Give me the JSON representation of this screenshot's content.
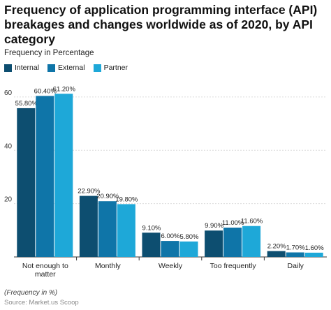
{
  "chart_data": {
    "type": "bar",
    "title": "Frequency of application programming interface (API) breakages and changes worldwide as of 2020, by API category",
    "ylabel": "Frequency in Percentage",
    "xlabel": "",
    "ylim": [
      0,
      66
    ],
    "yticks": [
      20,
      40,
      60
    ],
    "grid": true,
    "legend_position": "top-left",
    "categories": [
      "Not enough to matter",
      "Monthly",
      "Weekly",
      "Too frequently",
      "Daily"
    ],
    "category_lines": [
      [
        "Not enough to",
        "matter"
      ],
      [
        "Monthly"
      ],
      [
        "Weekly"
      ],
      [
        "Too frequently"
      ],
      [
        "Daily"
      ]
    ],
    "series": [
      {
        "name": "Internal",
        "color": "#0d4e70",
        "values": [
          55.8,
          22.9,
          9.1,
          9.9,
          2.2
        ],
        "labels": [
          "55.80%",
          "22.90%",
          "9.10%",
          "9.90%",
          "2.20%"
        ]
      },
      {
        "name": "External",
        "color": "#0f75a8",
        "values": [
          60.4,
          20.9,
          6.0,
          11.0,
          1.7
        ],
        "labels": [
          "60.40%",
          "20.90%",
          "6.00%",
          "11.00%",
          "1.70%"
        ]
      },
      {
        "name": "Partner",
        "color": "#1ea8d8",
        "values": [
          61.2,
          19.8,
          5.8,
          11.6,
          1.6
        ],
        "labels": [
          "61.20%",
          "19.80%",
          "5.80%",
          "11.60%",
          "1.60%"
        ]
      }
    ]
  },
  "footnote": "(Frequency in %)",
  "source": "Source: Market.us Scoop"
}
